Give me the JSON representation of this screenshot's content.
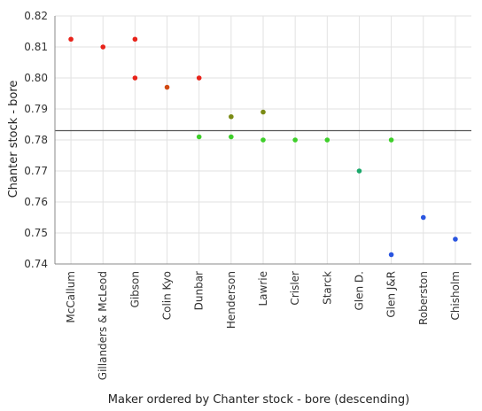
{
  "chart_data": {
    "type": "scatter",
    "xlabel": "Maker ordered by Chanter stock - bore (descending)",
    "ylabel": "Chanter stock - bore",
    "ylim": [
      0.74,
      0.82
    ],
    "yticks": [
      0.74,
      0.75,
      0.76,
      0.77,
      0.78,
      0.79,
      0.8,
      0.81,
      0.82
    ],
    "grid": true,
    "categories": [
      "McCallum",
      "Gillanders & McLeod",
      "Gibson",
      "Colin Kyo",
      "Dunbar",
      "Henderson",
      "Lawrie",
      "Crisler",
      "Starck",
      "Glen D.",
      "Glen J&R",
      "Roberston",
      "Chisholm"
    ],
    "reference_line": 0.783,
    "points": [
      {
        "x": "McCallum",
        "y": 0.8125,
        "color": "#e8231a"
      },
      {
        "x": "Gillanders & McLeod",
        "y": 0.81,
        "color": "#e8231a"
      },
      {
        "x": "Gibson",
        "y": 0.8125,
        "color": "#e8231a"
      },
      {
        "x": "Gibson",
        "y": 0.8,
        "color": "#e8231a"
      },
      {
        "x": "Colin Kyo",
        "y": 0.797,
        "color": "#d14a12"
      },
      {
        "x": "Dunbar",
        "y": 0.8,
        "color": "#e8231a"
      },
      {
        "x": "Dunbar",
        "y": 0.781,
        "color": "#3ecf2a"
      },
      {
        "x": "Henderson",
        "y": 0.7875,
        "color": "#7a8a14"
      },
      {
        "x": "Henderson",
        "y": 0.781,
        "color": "#3ecf2a"
      },
      {
        "x": "Lawrie",
        "y": 0.789,
        "color": "#7a8a14"
      },
      {
        "x": "Lawrie",
        "y": 0.78,
        "color": "#3ecf2a"
      },
      {
        "x": "Crisler",
        "y": 0.78,
        "color": "#3ecf2a"
      },
      {
        "x": "Starck",
        "y": 0.78,
        "color": "#3ecf2a"
      },
      {
        "x": "Glen D.",
        "y": 0.77,
        "color": "#1aa86a"
      },
      {
        "x": "Glen J&R",
        "y": 0.78,
        "color": "#3ecf2a"
      },
      {
        "x": "Glen J&R",
        "y": 0.743,
        "color": "#2a55e0"
      },
      {
        "x": "Roberston",
        "y": 0.755,
        "color": "#2a55e0"
      },
      {
        "x": "Chisholm",
        "y": 0.748,
        "color": "#2a55e0"
      }
    ]
  }
}
